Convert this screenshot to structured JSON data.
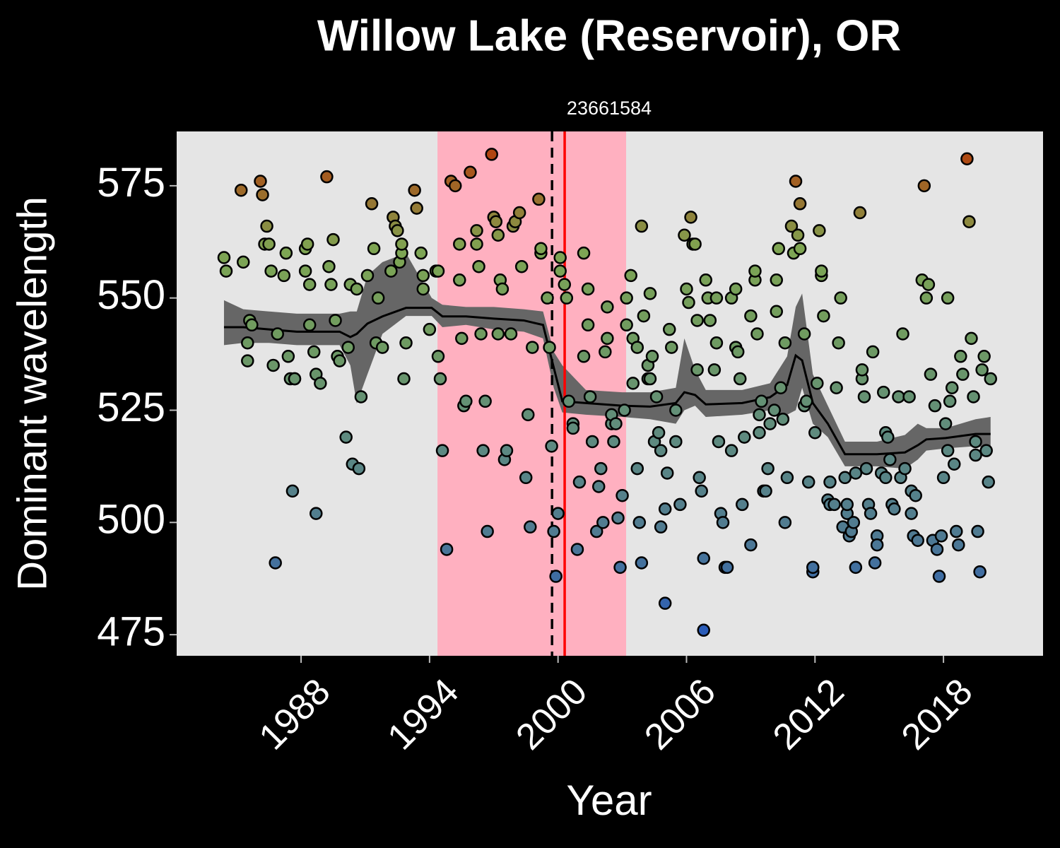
{
  "chart_data": {
    "type": "scatter",
    "title": "Willow Lake (Reservoir), OR",
    "subtitle": "23661584",
    "xlabel": "Year",
    "ylabel": "Dominant wavelength",
    "xlim": [
      1982.19,
      2022.65
    ],
    "ylim": [
      470.3,
      587.1
    ],
    "xticks": [
      1988,
      1994,
      2000,
      2006,
      2012,
      2018
    ],
    "yticks": [
      475,
      500,
      525,
      550,
      575
    ],
    "grid": false,
    "background": "#e5e5e5",
    "color_scale": [
      "#2a5cb8",
      "#4f7a92",
      "#5e8a80",
      "#6e9a62",
      "#7ea553",
      "#b04510"
    ],
    "shade": {
      "x": [
        1994.37,
        2003.18
      ],
      "color": "#ffb0c0"
    },
    "vlines": [
      {
        "x": 1999.72,
        "color": "#000000",
        "dash": true
      },
      {
        "x": 2000.31,
        "color": "#ff0000",
        "dash": false
      }
    ],
    "smooth": {
      "color": "#000000",
      "band_color": "#666666",
      "x": [
        1984.4,
        1985.3,
        1986.5,
        1987.8,
        1989.8,
        1990.3,
        1990.6,
        1991.1,
        1991.8,
        1992.9,
        1994.1,
        1994.6,
        1995.7,
        1997.0,
        1998.4,
        1999.3,
        1999.8,
        2000.2,
        2001.3,
        2003.0,
        2004.3,
        2005.5,
        2005.9,
        2006.4,
        2006.9,
        2008.6,
        2009.9,
        2010.7,
        2011.1,
        2011.4,
        2011.9,
        2012.6,
        2013.4,
        2014.9,
        2016.2,
        2016.8,
        2017.2,
        2018.1,
        2019.5,
        2020.2
      ],
      "y": [
        543.5,
        543.5,
        543,
        542.5,
        542.5,
        541.3,
        542,
        544.3,
        545.9,
        547.8,
        547.8,
        545.9,
        545.9,
        545.4,
        545,
        544,
        534.5,
        527,
        526.6,
        526,
        525.8,
        526.6,
        529,
        528.4,
        526.3,
        526.6,
        527.9,
        530.6,
        537.2,
        536.1,
        526.6,
        522,
        515.2,
        515.2,
        515.6,
        517.2,
        518.5,
        518.8,
        519.7,
        519.7
      ],
      "lower": [
        539.5,
        540,
        540,
        539.5,
        539.5,
        535,
        526.5,
        533,
        542,
        546,
        546,
        543.5,
        544,
        543,
        542.5,
        541,
        530,
        524.5,
        524,
        523.5,
        523,
        522,
        525,
        526,
        523.5,
        524,
        525,
        524,
        525,
        530,
        522,
        519,
        512.5,
        512.5,
        512,
        514,
        516,
        516.5,
        517,
        516.5
      ],
      "upper": [
        549.5,
        547.5,
        547,
        546.5,
        546.5,
        547,
        547,
        555,
        558,
        560,
        550,
        548.5,
        548,
        548,
        547.5,
        547,
        538,
        535,
        529.5,
        529,
        529,
        530,
        541,
        534,
        529.5,
        529.5,
        531,
        537,
        548,
        551,
        533,
        526,
        518,
        518,
        519.5,
        522,
        521,
        521,
        523,
        523.5
      ]
    },
    "series": [
      {
        "x": [
          1984.4,
          1984.5,
          1985.2,
          1985.3,
          1985.5,
          1985.5,
          1985.6,
          1985.7,
          1986.1,
          1986.2,
          1986.4,
          1986.3,
          1986.5,
          1986.6,
          1986.7,
          1986.9,
          1986.8,
          1987.2,
          1987.3,
          1987.4,
          1987.5,
          1987.6,
          1987.7,
          1987.7,
          1988.2,
          1988.2,
          1988.3,
          1988.4,
          1988.4,
          1988.6,
          1988.7,
          1988.7,
          1988.9,
          1989.2,
          1989.3,
          1989.4,
          1989.5,
          1989.6,
          1989.7,
          1989.8,
          1990.1,
          1990.2,
          1990.3,
          1990.4,
          1990.6,
          1990.7,
          1990.8,
          1991.1,
          1991.3,
          1991.4,
          1991.5,
          1991.6,
          1991.8,
          1992.2,
          1992.3,
          1992.4,
          1992.5,
          1992.6,
          1992.7,
          1992.7,
          1992.8,
          1992.9,
          1993.3,
          1993.4,
          1993.6,
          1993.7,
          1993.7,
          1994.0,
          1994.3,
          1994.4,
          1994.4,
          1994.5,
          1994.6,
          1994.8,
          1995.0,
          1995.2,
          1995.4,
          1995.4,
          1995.5,
          1995.6,
          1995.7,
          1995.9,
          1996.2,
          1996.2,
          1996.3,
          1996.4,
          1996.5,
          1996.6,
          1996.7,
          1996.9,
          1997.0,
          1997.1,
          1997.2,
          1997.2,
          1997.3,
          1997.4,
          1997.5,
          1997.6,
          1997.8,
          1997.9,
          1998.0,
          1998.2,
          1998.3,
          1998.5,
          1998.6,
          1998.7,
          1998.8,
          1999.1,
          1999.2,
          1999.2,
          1999.5,
          1999.6,
          1999.7,
          1999.8,
          1999.9,
          2000.0,
          2000.1,
          2000.1,
          2000.3,
          2000.4,
          2000.5,
          2000.7,
          2000.7,
          2000.9,
          2001.0,
          2001.2,
          2001.2,
          2001.4,
          2001.4,
          2001.5,
          2001.6,
          2001.8,
          2001.9,
          2002.0,
          2002.1,
          2002.2,
          2002.3,
          2002.3,
          2002.5,
          2002.5,
          2002.6,
          2002.7,
          2002.8,
          2002.9,
          2003.0,
          2003.1,
          2003.2,
          2003.2,
          2003.4,
          2003.5,
          2003.5,
          2003.7,
          2003.7,
          2003.8,
          2003.9,
          2003.9,
          2004.0,
          2004.2,
          2004.2,
          2004.3,
          2004.3,
          2004.4,
          2004.5,
          2004.6,
          2004.7,
          2004.8,
          2004.8,
          2005.0,
          2005.0,
          2005.1,
          2005.2,
          2005.3,
          2005.5,
          2005.5,
          2005.7,
          2005.9,
          2006.0,
          2006.1,
          2006.2,
          2006.3,
          2006.4,
          2006.5,
          2006.5,
          2006.6,
          2006.7,
          2006.8,
          2006.8,
          2006.9,
          2007.0,
          2007.1,
          2007.3,
          2007.4,
          2007.4,
          2007.5,
          2007.6,
          2007.7,
          2007.8,
          2007.9,
          2008.1,
          2008.1,
          2008.3,
          2008.3,
          2008.4,
          2008.5,
          2008.6,
          2008.7,
          2009.0,
          2009.0,
          2009.2,
          2009.2,
          2009.3,
          2009.4,
          2009.4,
          2009.5,
          2009.6,
          2009.7,
          2009.8,
          2009.9,
          2010.1,
          2010.2,
          2010.2,
          2010.3,
          2010.4,
          2010.5,
          2010.6,
          2010.6,
          2010.7,
          2010.9,
          2011.0,
          2011.1,
          2011.2,
          2011.3,
          2011.3,
          2011.5,
          2011.5,
          2011.6,
          2011.7,
          2011.9,
          2011.9,
          2012.0,
          2012.1,
          2012.2,
          2012.3,
          2012.3,
          2012.4,
          2012.6,
          2012.7,
          2012.7,
          2012.9,
          2013.0,
          2013.1,
          2013.2,
          2013.3,
          2013.4,
          2013.5,
          2013.5,
          2013.6,
          2013.7,
          2013.8,
          2013.9,
          2013.9,
          2014.1,
          2014.2,
          2014.2,
          2014.3,
          2014.4,
          2014.5,
          2014.6,
          2014.7,
          2014.8,
          2014.9,
          2014.9,
          2015.1,
          2015.2,
          2015.3,
          2015.3,
          2015.4,
          2015.5,
          2015.6,
          2015.7,
          2015.9,
          2016.0,
          2016.1,
          2016.2,
          2016.4,
          2016.5,
          2016.5,
          2016.6,
          2016.7,
          2016.8,
          2017.0,
          2017.1,
          2017.2,
          2017.3,
          2017.4,
          2017.5,
          2017.6,
          2017.7,
          2017.8,
          2017.9,
          2018.0,
          2018.1,
          2018.2,
          2018.2,
          2018.3,
          2018.4,
          2018.5,
          2018.6,
          2018.7,
          2018.8,
          2018.9,
          2019.1,
          2019.2,
          2019.3,
          2019.4,
          2019.5,
          2019.6,
          2019.7,
          2019.8,
          2019.9,
          2020.0,
          2020.1,
          2020.2,
          2019.5
        ],
        "values": [
          559,
          556,
          574,
          558,
          536,
          540,
          545,
          544,
          576,
          573,
          566,
          562,
          562,
          556,
          535,
          542,
          491,
          555,
          560,
          537,
          532,
          507,
          532,
          532,
          556,
          561,
          562,
          553,
          544,
          538,
          502,
          533,
          531,
          577,
          557,
          553,
          563,
          545,
          537,
          536,
          519,
          539,
          553,
          513,
          552,
          512,
          528,
          555,
          571,
          561,
          540,
          550,
          539,
          556,
          568,
          566,
          565,
          558,
          560,
          562,
          532,
          540,
          574,
          570,
          560,
          555,
          552,
          543,
          556,
          556,
          537,
          532,
          516,
          494,
          576,
          575,
          562,
          554,
          541,
          526,
          527,
          578,
          565,
          562,
          557,
          542,
          516,
          527,
          498,
          582,
          568,
          567,
          564,
          542,
          554,
          552,
          514,
          516,
          542,
          566,
          567,
          569,
          557,
          510,
          524,
          499,
          539,
          572,
          560,
          561,
          550,
          539,
          517,
          498,
          488,
          502,
          559,
          556,
          553,
          550,
          527,
          522,
          521,
          494,
          509,
          537,
          560,
          552,
          544,
          528,
          518,
          498,
          508,
          512,
          500,
          538,
          541,
          548,
          522,
          524,
          518,
          522,
          501,
          490,
          506,
          525,
          550,
          544,
          555,
          541,
          531,
          539,
          512,
          500,
          491,
          566,
          546,
          532,
          535,
          532,
          551,
          537,
          518,
          528,
          520,
          499,
          516,
          482,
          503,
          511,
          543,
          539,
          525,
          518,
          504,
          564,
          552,
          549,
          568,
          562,
          562,
          545,
          534,
          510,
          507,
          476,
          492,
          554,
          550,
          545,
          534,
          550,
          540,
          518,
          502,
          500,
          490,
          490,
          516,
          550,
          539,
          552,
          538,
          532,
          504,
          519,
          495,
          546,
          554,
          556,
          542,
          520,
          524,
          527,
          507,
          507,
          512,
          522,
          525,
          554,
          547,
          561,
          530,
          523,
          540,
          500,
          510,
          566,
          560,
          576,
          564,
          571,
          561,
          542,
          526,
          527,
          509,
          489,
          490,
          520,
          531,
          565,
          555,
          556,
          546,
          505,
          504,
          509,
          504,
          530,
          540,
          550,
          499,
          510,
          502,
          504,
          497,
          498,
          500,
          490,
          511,
          569,
          532,
          534,
          528,
          512,
          504,
          502,
          538,
          491,
          497,
          495,
          511,
          529,
          510,
          520,
          519,
          514,
          504,
          503,
          528,
          510,
          542,
          512,
          528,
          502,
          507,
          497,
          506,
          496,
          554,
          575,
          550,
          553,
          533,
          496,
          526,
          494,
          488,
          497,
          510,
          522,
          550,
          516,
          527,
          530,
          513,
          498,
          495,
          537,
          533,
          581,
          567,
          541,
          528,
          515,
          498,
          489,
          534,
          537,
          516,
          509,
          532,
          518
        ]
      }
    ]
  }
}
